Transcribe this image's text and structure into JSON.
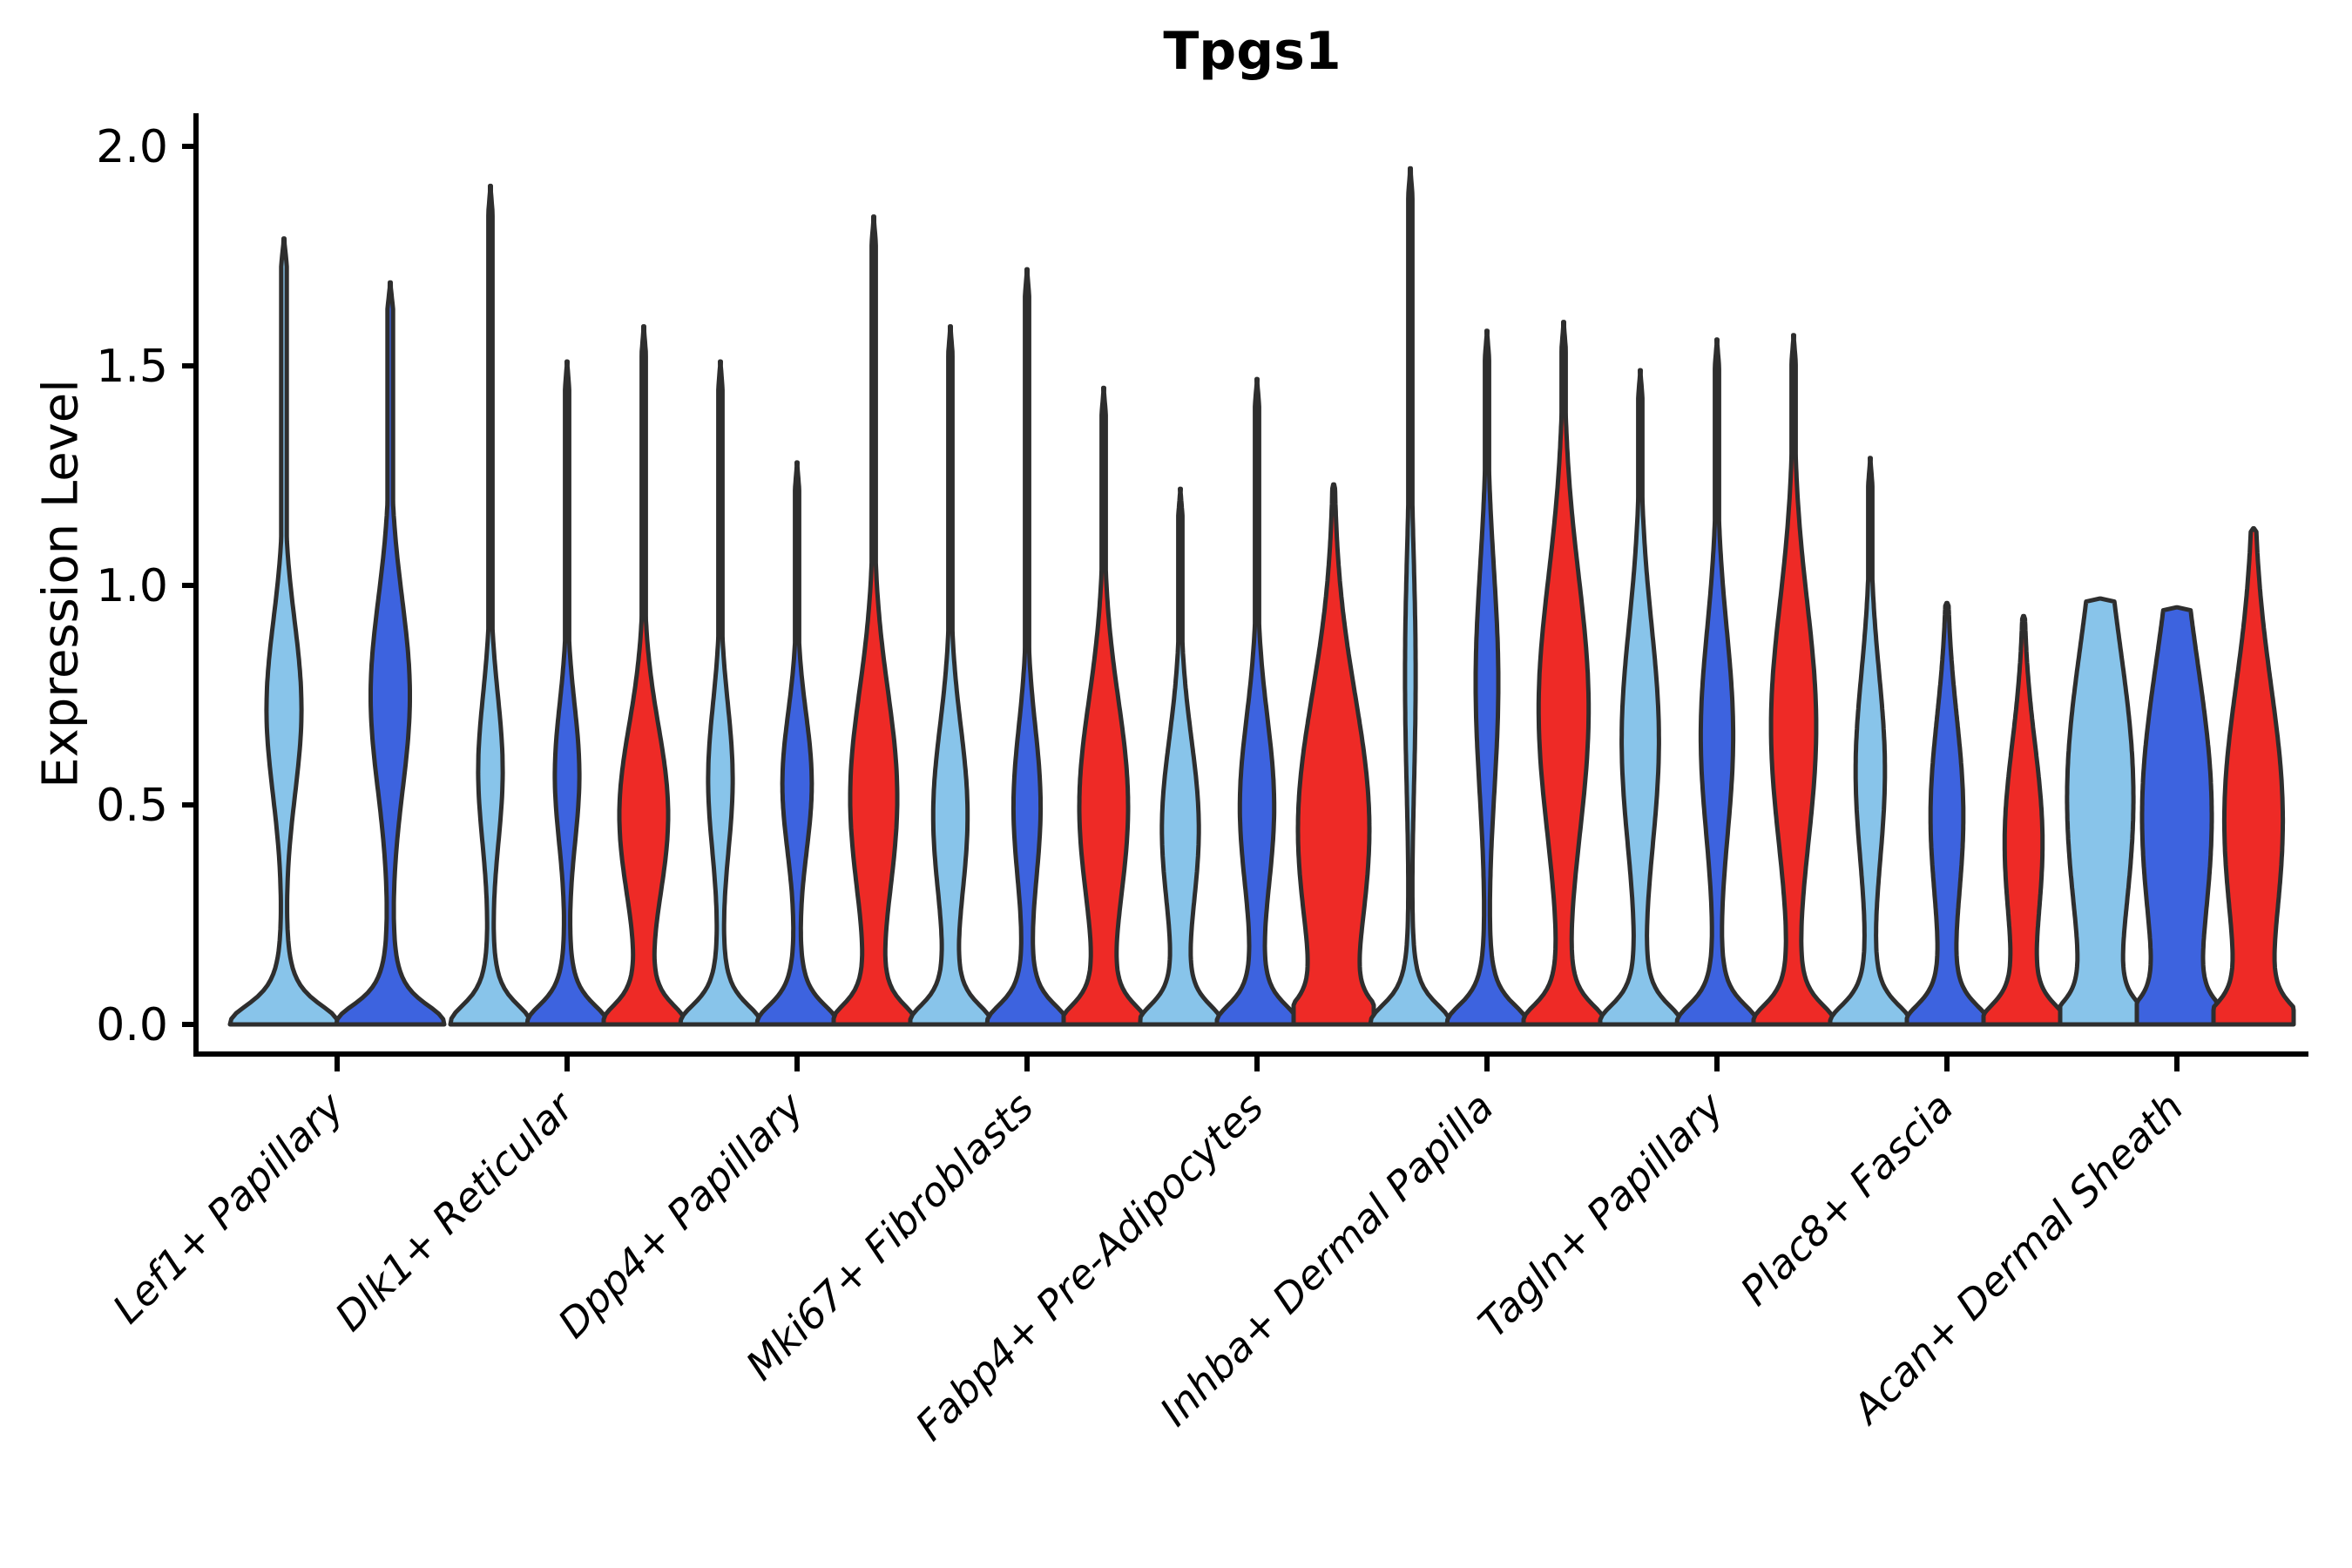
{
  "figure": {
    "title": "Tpgs1",
    "y_axis_label": "Expression Level"
  },
  "chart_data": {
    "type": "violin",
    "title": "Tpgs1",
    "xlabel": "",
    "ylabel": "Expression Level",
    "ylim": [
      0,
      2.05
    ],
    "y_ticks": [
      "0.0",
      "0.5",
      "1.0",
      "1.5",
      "2.0"
    ],
    "grid": false,
    "legend_position": "none",
    "zero_inflated": true,
    "description": "Stacked-violin style gene expression plot; every violin has a large density peak at expression 0, a thin stem toward its maximum, and a mid-level bulge whose center/width is given per violin.",
    "colors": {
      "sample1": "#88C4EA",
      "sample2": "#3D63DF",
      "sample3": "#EE2A26",
      "outline": "#2E2E2E"
    },
    "categories": [
      {
        "label": "Lef1+ Papillary",
        "violins": [
          {
            "sample": "sample1",
            "max": 1.79,
            "bulge_center": 0.72,
            "bulge_half_width": 0.32,
            "bulge_spread": 0.2
          },
          {
            "sample": "sample2",
            "max": 1.69,
            "bulge_center": 0.75,
            "bulge_half_width": 0.36,
            "bulge_spread": 0.22
          }
        ]
      },
      {
        "label": "Dlk1+ Reticular",
        "violins": [
          {
            "sample": "sample1",
            "max": 1.91,
            "bulge_center": 0.58,
            "bulge_half_width": 0.3,
            "bulge_spread": 0.17
          },
          {
            "sample": "sample2",
            "max": 1.51,
            "bulge_center": 0.57,
            "bulge_half_width": 0.3,
            "bulge_spread": 0.16
          },
          {
            "sample": "sample3",
            "max": 1.59,
            "bulge_center": 0.48,
            "bulge_half_width": 0.6,
            "bulge_spread": 0.2
          }
        ]
      },
      {
        "label": "Dpp4+ Papillary",
        "violins": [
          {
            "sample": "sample1",
            "max": 1.51,
            "bulge_center": 0.56,
            "bulge_half_width": 0.3,
            "bulge_spread": 0.17
          },
          {
            "sample": "sample2",
            "max": 1.28,
            "bulge_center": 0.55,
            "bulge_half_width": 0.36,
            "bulge_spread": 0.16
          },
          {
            "sample": "sample3",
            "max": 1.84,
            "bulge_center": 0.52,
            "bulge_half_width": 0.58,
            "bulge_spread": 0.24
          }
        ]
      },
      {
        "label": "Mki67+ Fibroblasts",
        "violins": [
          {
            "sample": "sample1",
            "max": 1.59,
            "bulge_center": 0.48,
            "bulge_half_width": 0.42,
            "bulge_spread": 0.2
          },
          {
            "sample": "sample2",
            "max": 1.72,
            "bulge_center": 0.5,
            "bulge_half_width": 0.33,
            "bulge_spread": 0.18
          },
          {
            "sample": "sample3",
            "max": 1.45,
            "bulge_center": 0.5,
            "bulge_half_width": 0.6,
            "bulge_spread": 0.24
          }
        ]
      },
      {
        "label": "Fabp4+ Pre-Adipocytes",
        "violins": [
          {
            "sample": "sample1",
            "max": 1.22,
            "bulge_center": 0.45,
            "bulge_half_width": 0.45,
            "bulge_spread": 0.2
          },
          {
            "sample": "sample2",
            "max": 1.47,
            "bulge_center": 0.5,
            "bulge_half_width": 0.42,
            "bulge_spread": 0.2
          },
          {
            "sample": "sample3",
            "max": 1.23,
            "bulge_center": 0.45,
            "bulge_half_width": 0.88,
            "bulge_spread": 0.3
          }
        ]
      },
      {
        "label": "Inhba+ Dermal Papilla",
        "violins": [
          {
            "sample": "sample1",
            "max": 1.95,
            "bulge_center": 0.8,
            "bulge_half_width": 0.13,
            "bulge_spread": 0.28
          },
          {
            "sample": "sample2",
            "max": 1.58,
            "bulge_center": 0.78,
            "bulge_half_width": 0.28,
            "bulge_spread": 0.26
          },
          {
            "sample": "sample3",
            "max": 1.6,
            "bulge_center": 0.72,
            "bulge_half_width": 0.62,
            "bulge_spread": 0.3
          }
        ]
      },
      {
        "label": "Tagln+ Papillary",
        "violins": [
          {
            "sample": "sample1",
            "max": 1.49,
            "bulge_center": 0.65,
            "bulge_half_width": 0.46,
            "bulge_spread": 0.26
          },
          {
            "sample": "sample2",
            "max": 1.56,
            "bulge_center": 0.66,
            "bulge_half_width": 0.4,
            "bulge_spread": 0.24
          },
          {
            "sample": "sample3",
            "max": 1.57,
            "bulge_center": 0.68,
            "bulge_half_width": 0.56,
            "bulge_spread": 0.28
          }
        ]
      },
      {
        "label": "Plac8+ Fascia",
        "violins": [
          {
            "sample": "sample1",
            "max": 1.29,
            "bulge_center": 0.58,
            "bulge_half_width": 0.36,
            "bulge_spread": 0.22
          },
          {
            "sample": "sample2",
            "max": 0.96,
            "bulge_center": 0.48,
            "bulge_half_width": 0.4,
            "bulge_spread": 0.22
          },
          {
            "sample": "sample3",
            "max": 0.93,
            "bulge_center": 0.42,
            "bulge_half_width": 0.46,
            "bulge_spread": 0.22
          }
        ]
      },
      {
        "label": "Acan+ Dermal Sheath",
        "violins": [
          {
            "sample": "sample1",
            "max": 0.97,
            "bulge_center": 0.52,
            "bulge_half_width": 0.82,
            "bulge_spread": 0.34
          },
          {
            "sample": "sample2",
            "max": 0.95,
            "bulge_center": 0.48,
            "bulge_half_width": 0.86,
            "bulge_spread": 0.34
          },
          {
            "sample": "sample3",
            "max": 1.13,
            "bulge_center": 0.47,
            "bulge_half_width": 0.72,
            "bulge_spread": 0.3
          }
        ]
      }
    ]
  }
}
